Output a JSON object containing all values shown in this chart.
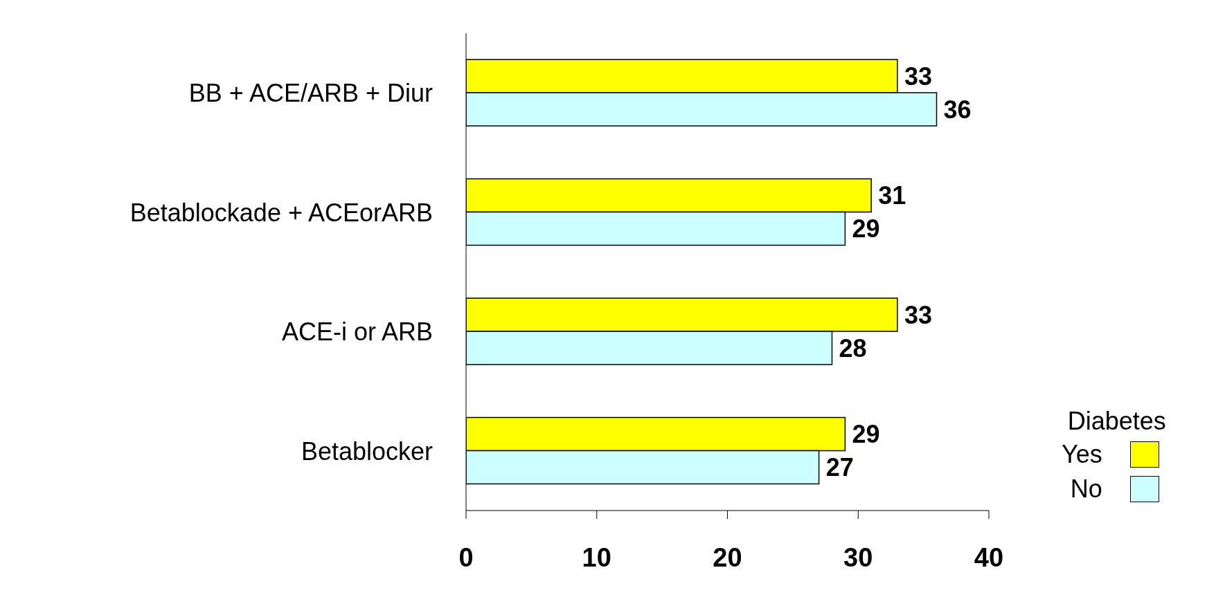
{
  "chart_data": {
    "type": "bar",
    "orientation": "horizontal",
    "categories": [
      "BB + ACE/ARB + Diur",
      "Betablockade + ACEorARB",
      "ACE-i or ARB",
      "Betablocker"
    ],
    "series": [
      {
        "name": "Yes",
        "color": "#ffff00",
        "values": [
          33,
          31,
          33,
          29
        ]
      },
      {
        "name": "No",
        "color": "#ccffff",
        "values": [
          36,
          29,
          28,
          27
        ]
      }
    ],
    "xlim": [
      0,
      40
    ],
    "xticks": [
      0,
      10,
      20,
      30,
      40
    ],
    "data_labels": true,
    "legend": "bottom right",
    "legend_title": "Diabetes",
    "grid": false
  }
}
